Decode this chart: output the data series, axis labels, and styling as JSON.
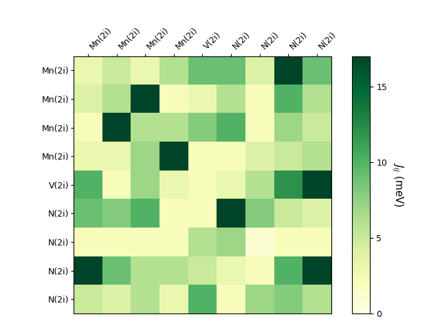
{
  "labels_x": [
    "Mn(2i)",
    "Mn(2i)",
    "Mn(2i)",
    "Mn(2i)",
    "V(2i)",
    "N(2i)",
    "N(2i)",
    "N(2i)",
    "N(2i)"
  ],
  "labels_y": [
    "Mn(2i)",
    "Mn(2i)",
    "Mn(2i)",
    "Mn(2i)",
    "V(2i)",
    "N(2i)",
    "N(2i)",
    "N(2i)",
    "N(2i)"
  ],
  "data": [
    [
      3,
      5,
      3,
      6,
      9,
      9,
      4,
      17,
      9
    ],
    [
      4,
      6,
      17,
      2,
      3,
      6,
      2,
      10,
      6
    ],
    [
      2,
      17,
      6,
      6,
      8,
      10,
      2,
      7,
      5
    ],
    [
      3,
      3,
      7,
      18,
      2,
      2,
      4,
      5,
      6
    ],
    [
      10,
      2,
      7,
      3,
      2,
      3,
      6,
      12,
      17
    ],
    [
      9,
      8,
      10,
      2,
      2,
      18,
      8,
      5,
      4
    ],
    [
      2,
      2,
      2,
      2,
      6,
      7,
      1,
      2,
      2
    ],
    [
      18,
      9,
      6,
      6,
      5,
      3,
      2,
      10,
      17
    ],
    [
      5,
      4,
      6,
      3,
      10,
      2,
      7,
      8,
      6
    ]
  ],
  "vmin": 0,
  "vmax": 17,
  "cmap": "YlGn",
  "colorbar_label": "$J_{ij}$ (meV)",
  "colorbar_ticks": [
    0,
    5,
    10,
    15
  ],
  "figsize": [
    6.4,
    4.8
  ],
  "dpi": 100,
  "tick_fontsize": 9,
  "cbar_fontsize": 11
}
